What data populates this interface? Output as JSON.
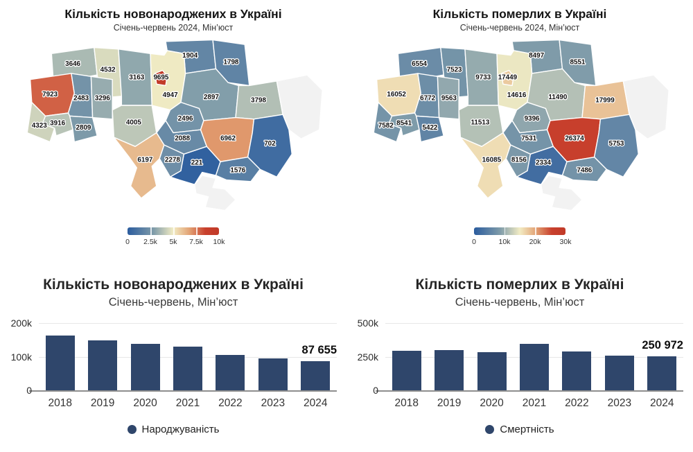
{
  "palette": {
    "stops": [
      [
        0,
        "#2b5c9e"
      ],
      [
        0.28,
        "#7d9aa9"
      ],
      [
        0.5,
        "#f2ecc4"
      ],
      [
        0.68,
        "#e2a173"
      ],
      [
        0.85,
        "#c8402d"
      ],
      [
        1,
        "#c13a28"
      ]
    ],
    "no_data": "#f2f2f2",
    "no_data_border": "#dedede"
  },
  "maps": [
    {
      "title": "Кількість новонароджених в Україні",
      "subtitle": "Січень-червень 2024, Мін’юст",
      "max": 10000,
      "legend_ticks": [
        {
          "label": "0",
          "pos": 0
        },
        {
          "label": "2.5k",
          "pos": 0.25
        },
        {
          "label": "5k",
          "pos": 0.5
        },
        {
          "label": "7.5k",
          "pos": 0.75
        },
        {
          "label": "10k",
          "pos": 1
        }
      ],
      "regions": {
        "volyn": 3646,
        "rivne": 4532,
        "zhytomyr": 3163,
        "kyiv": 4947,
        "kyiv_city": 9695,
        "chernihiv": 1904,
        "sumy": 1798,
        "lviv": 7923,
        "ternopil": 2483,
        "khmelnytskyi": 3296,
        "vinnytsia": 4005,
        "cherkasy": 2496,
        "poltava": 2897,
        "kharkiv": 3798,
        "zakarpattia": 4323,
        "ivano_frankivsk": 3916,
        "chernivtsi": 2809,
        "kirovohrad": 2088,
        "dnipro": 6962,
        "donetsk": 702,
        "odesa": 6197,
        "mykolaiv": 2278,
        "kherson": 221,
        "zaporizhzhia": 1576,
        "luhansk": null,
        "crimea": null
      }
    },
    {
      "title": "Кількість померлих в Україні",
      "subtitle": "Січень-червень 2024, Мін’юст",
      "max": 30000,
      "legend_ticks": [
        {
          "label": "0",
          "pos": 0
        },
        {
          "label": "10k",
          "pos": 0.333
        },
        {
          "label": "20k",
          "pos": 0.667
        },
        {
          "label": "30k",
          "pos": 1
        }
      ],
      "regions": {
        "volyn": 6554,
        "rivne": 7523,
        "zhytomyr": 9733,
        "kyiv": 14616,
        "kyiv_city": 17449,
        "chernihiv": 8497,
        "sumy": 8551,
        "lviv": 16052,
        "ternopil": 6772,
        "khmelnytskyi": 9563,
        "vinnytsia": 11513,
        "cherkasy": 9396,
        "poltava": 11490,
        "kharkiv": 17999,
        "zakarpattia": 7582,
        "ivano_frankivsk": 8541,
        "chernivtsi": 5422,
        "kirovohrad": 7531,
        "dnipro": 26374,
        "donetsk": 5753,
        "odesa": 16085,
        "mykolaiv": 8156,
        "kherson": 2334,
        "zaporizhzhia": 7486,
        "luhansk": null,
        "crimea": null
      }
    }
  ],
  "chart_data": [
    {
      "type": "bar",
      "title": "Кількість новонароджених в Україні",
      "subtitle": "Січень-червень, Мін’юст",
      "categories": [
        "2018",
        "2019",
        "2020",
        "2021",
        "2022",
        "2023",
        "2024"
      ],
      "values": [
        163000,
        148000,
        138000,
        130000,
        105000,
        94500,
        87655
      ],
      "ylim": [
        0,
        200000
      ],
      "yticks": [
        "200k",
        "100k",
        "0"
      ],
      "annotation": "87 655",
      "legend": "Народжуваність",
      "bar_color": "#2f466b",
      "grid": "horizontal",
      "legend_position": "bottom-center"
    },
    {
      "type": "bar",
      "title": "Кількість померлих в Україні",
      "subtitle": "Січень-червень, Мін’юст",
      "categories": [
        "2018",
        "2019",
        "2020",
        "2021",
        "2022",
        "2023",
        "2024"
      ],
      "values": [
        294000,
        299000,
        283000,
        345000,
        290000,
        256000,
        250972
      ],
      "ylim": [
        0,
        500000
      ],
      "yticks": [
        "500k",
        "250k",
        "0"
      ],
      "annotation": "250 972",
      "legend": "Смертність",
      "bar_color": "#2f466b",
      "grid": "horizontal",
      "legend_position": "bottom-center"
    }
  ]
}
